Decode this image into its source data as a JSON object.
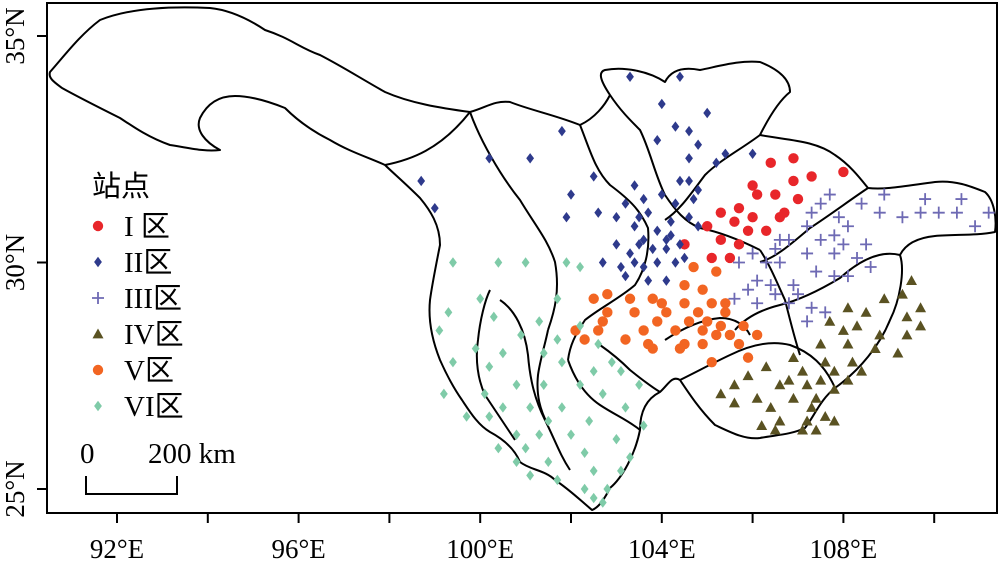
{
  "axes": {
    "x_ticks": [
      "92°E",
      "96°E",
      "100°E",
      "104°E",
      "108°E"
    ],
    "y_ticks": [
      "35°N",
      "30°N",
      "25°N"
    ]
  },
  "legend": {
    "title": "站点",
    "entries": [
      {
        "label": "I 区",
        "color": "#e8262a",
        "shape": "circle"
      },
      {
        "label": "II区",
        "color": "#2e3a8c",
        "shape": "diamond"
      },
      {
        "label": "III区",
        "color": "#6e6ab4",
        "shape": "plus"
      },
      {
        "label": "IV区",
        "color": "#5a5222",
        "shape": "triangle"
      },
      {
        "label": "V区",
        "color": "#f26522",
        "shape": "circle"
      },
      {
        "label": "VI区",
        "color": "#7fcba8",
        "shape": "diamond"
      }
    ]
  },
  "scalebar": {
    "zero": "0",
    "label": "200 km"
  },
  "chart_data": {
    "type": "scatter",
    "title": "",
    "xlim": [
      90.5,
      112
    ],
    "ylim": [
      24.5,
      36
    ],
    "series": [
      {
        "name": "I 区",
        "color": "#e8262a",
        "shape": "circle",
        "points": [
          [
            106.9,
            32.3
          ],
          [
            106.4,
            32.2
          ],
          [
            108.0,
            32.0
          ],
          [
            107.3,
            31.9
          ],
          [
            106.9,
            31.8
          ],
          [
            106.0,
            31.7
          ],
          [
            106.1,
            31.5
          ],
          [
            106.5,
            31.5
          ],
          [
            107.0,
            31.4
          ],
          [
            105.7,
            31.2
          ],
          [
            105.3,
            31.1
          ],
          [
            106.0,
            31.0
          ],
          [
            106.7,
            31.1
          ],
          [
            106.6,
            31.0
          ],
          [
            105.6,
            30.9
          ],
          [
            105.0,
            30.8
          ],
          [
            105.9,
            30.7
          ],
          [
            106.3,
            30.7
          ],
          [
            105.3,
            30.5
          ],
          [
            105.7,
            30.4
          ],
          [
            104.5,
            30.4
          ],
          [
            105.1,
            30.1
          ],
          [
            105.5,
            30.1
          ]
        ]
      },
      {
        "name": "II区",
        "color": "#2e3a8c",
        "shape": "diamond",
        "points": [
          [
            103.3,
            34.1
          ],
          [
            104.4,
            34.1
          ],
          [
            104.0,
            33.5
          ],
          [
            105.0,
            33.3
          ],
          [
            104.3,
            33.0
          ],
          [
            104.6,
            32.9
          ],
          [
            103.9,
            32.7
          ],
          [
            104.8,
            32.6
          ],
          [
            101.8,
            32.9
          ],
          [
            105.4,
            32.4
          ],
          [
            106.0,
            32.4
          ],
          [
            100.2,
            32.3
          ],
          [
            101.1,
            32.3
          ],
          [
            104.6,
            32.3
          ],
          [
            105.2,
            32.2
          ],
          [
            98.7,
            31.8
          ],
          [
            102.5,
            31.9
          ],
          [
            104.4,
            31.8
          ],
          [
            104.6,
            31.8
          ],
          [
            103.4,
            31.7
          ],
          [
            104.8,
            31.6
          ],
          [
            104.0,
            31.5
          ],
          [
            102.0,
            31.5
          ],
          [
            103.6,
            31.4
          ],
          [
            104.7,
            31.4
          ],
          [
            103.2,
            31.3
          ],
          [
            104.3,
            31.3
          ],
          [
            99.0,
            31.2
          ],
          [
            102.6,
            31.1
          ],
          [
            103.7,
            31.1
          ],
          [
            104.6,
            31.0
          ],
          [
            101.9,
            31.0
          ],
          [
            103.0,
            31.0
          ],
          [
            103.5,
            31.0
          ],
          [
            104.2,
            30.9
          ],
          [
            104.8,
            30.8
          ],
          [
            103.4,
            30.8
          ],
          [
            103.9,
            30.7
          ],
          [
            104.2,
            30.6
          ],
          [
            103.6,
            30.5
          ],
          [
            104.1,
            30.5
          ],
          [
            104.4,
            30.4
          ],
          [
            103.0,
            30.4
          ],
          [
            103.5,
            30.4
          ],
          [
            103.8,
            30.3
          ],
          [
            104.1,
            30.3
          ],
          [
            103.3,
            30.2
          ],
          [
            104.5,
            30.1
          ],
          [
            102.7,
            30.0
          ],
          [
            103.4,
            30.0
          ],
          [
            103.9,
            30.0
          ],
          [
            104.3,
            30.0
          ],
          [
            103.1,
            29.9
          ],
          [
            103.6,
            29.9
          ],
          [
            103.2,
            29.7
          ],
          [
            103.7,
            29.6
          ],
          [
            104.1,
            29.6
          ]
        ]
      },
      {
        "name": "III区",
        "color": "#6e6ab4",
        "shape": "plus",
        "points": [
          [
            107.7,
            31.5
          ],
          [
            108.9,
            31.5
          ],
          [
            109.8,
            31.4
          ],
          [
            110.6,
            31.4
          ],
          [
            107.5,
            31.3
          ],
          [
            108.4,
            31.3
          ],
          [
            107.3,
            31.1
          ],
          [
            108.8,
            31.1
          ],
          [
            109.7,
            31.1
          ],
          [
            110.1,
            31.1
          ],
          [
            110.5,
            31.1
          ],
          [
            111.2,
            31.1
          ],
          [
            107.9,
            31.0
          ],
          [
            109.3,
            31.0
          ],
          [
            107.2,
            30.8
          ],
          [
            108.1,
            30.8
          ],
          [
            110.9,
            30.8
          ],
          [
            111.7,
            30.8
          ],
          [
            107.8,
            30.6
          ],
          [
            106.6,
            30.5
          ],
          [
            106.8,
            30.5
          ],
          [
            107.5,
            30.5
          ],
          [
            108.0,
            30.4
          ],
          [
            108.5,
            30.4
          ],
          [
            106.5,
            30.3
          ],
          [
            106.0,
            30.2
          ],
          [
            107.2,
            30.2
          ],
          [
            107.8,
            30.2
          ],
          [
            108.3,
            30.1
          ],
          [
            105.7,
            30.0
          ],
          [
            106.3,
            30.0
          ],
          [
            106.6,
            30.0
          ],
          [
            108.6,
            29.9
          ],
          [
            107.4,
            29.8
          ],
          [
            107.8,
            29.7
          ],
          [
            108.1,
            29.7
          ],
          [
            106.1,
            29.6
          ],
          [
            106.4,
            29.5
          ],
          [
            106.9,
            29.5
          ],
          [
            105.9,
            29.4
          ],
          [
            106.5,
            29.3
          ],
          [
            107.0,
            29.3
          ],
          [
            105.6,
            29.2
          ],
          [
            106.1,
            29.1
          ],
          [
            106.8,
            29.1
          ],
          [
            107.3,
            29.0
          ],
          [
            107.6,
            28.9
          ],
          [
            107.2,
            28.7
          ]
        ]
      },
      {
        "name": "IV区",
        "color": "#5a5222",
        "shape": "triangle",
        "points": [
          [
            109.5,
            29.6
          ],
          [
            109.3,
            29.3
          ],
          [
            108.9,
            29.2
          ],
          [
            108.1,
            29.0
          ],
          [
            109.7,
            29.0
          ],
          [
            108.5,
            28.9
          ],
          [
            109.4,
            28.8
          ],
          [
            107.7,
            28.7
          ],
          [
            108.3,
            28.6
          ],
          [
            109.7,
            28.6
          ],
          [
            108.0,
            28.5
          ],
          [
            108.8,
            28.4
          ],
          [
            109.4,
            28.4
          ],
          [
            107.5,
            28.2
          ],
          [
            108.1,
            28.2
          ],
          [
            108.7,
            28.1
          ],
          [
            109.2,
            28.0
          ],
          [
            106.9,
            27.9
          ],
          [
            107.6,
            27.8
          ],
          [
            108.2,
            27.8
          ],
          [
            106.3,
            27.7
          ],
          [
            107.1,
            27.6
          ],
          [
            107.8,
            27.6
          ],
          [
            108.4,
            27.6
          ],
          [
            105.9,
            27.5
          ],
          [
            106.8,
            27.4
          ],
          [
            107.5,
            27.4
          ],
          [
            108.1,
            27.4
          ],
          [
            105.6,
            27.3
          ],
          [
            106.6,
            27.3
          ],
          [
            107.2,
            27.3
          ],
          [
            107.8,
            27.2
          ],
          [
            105.3,
            27.1
          ],
          [
            106.1,
            27.0
          ],
          [
            106.9,
            27.0
          ],
          [
            107.4,
            27.0
          ],
          [
            105.6,
            26.9
          ],
          [
            106.4,
            26.8
          ],
          [
            107.3,
            26.8
          ],
          [
            107.6,
            26.6
          ],
          [
            106.6,
            26.5
          ],
          [
            107.2,
            26.5
          ],
          [
            107.8,
            26.5
          ],
          [
            106.2,
            26.4
          ],
          [
            106.5,
            26.3
          ],
          [
            107.1,
            26.3
          ],
          [
            107.4,
            26.3
          ]
        ]
      },
      {
        "name": "V区",
        "color": "#f26522",
        "shape": "circle",
        "points": [
          [
            104.7,
            29.9
          ],
          [
            105.2,
            29.8
          ],
          [
            104.5,
            29.5
          ],
          [
            104.9,
            29.4
          ],
          [
            102.8,
            29.3
          ],
          [
            102.5,
            29.2
          ],
          [
            103.3,
            29.2
          ],
          [
            103.8,
            29.2
          ],
          [
            104.0,
            29.1
          ],
          [
            104.5,
            29.1
          ],
          [
            105.1,
            29.1
          ],
          [
            105.4,
            29.1
          ],
          [
            102.8,
            28.9
          ],
          [
            103.4,
            28.9
          ],
          [
            104.1,
            28.9
          ],
          [
            104.8,
            28.9
          ],
          [
            105.4,
            28.9
          ],
          [
            102.7,
            28.7
          ],
          [
            103.9,
            28.7
          ],
          [
            104.6,
            28.7
          ],
          [
            105.0,
            28.7
          ],
          [
            105.3,
            28.6
          ],
          [
            105.8,
            28.6
          ],
          [
            102.1,
            28.5
          ],
          [
            102.6,
            28.5
          ],
          [
            103.6,
            28.5
          ],
          [
            104.3,
            28.5
          ],
          [
            104.9,
            28.5
          ],
          [
            105.2,
            28.4
          ],
          [
            105.5,
            28.4
          ],
          [
            106.1,
            28.4
          ],
          [
            102.3,
            28.3
          ],
          [
            103.2,
            28.3
          ],
          [
            103.7,
            28.2
          ],
          [
            104.5,
            28.2
          ],
          [
            104.9,
            28.2
          ],
          [
            105.7,
            28.2
          ],
          [
            103.8,
            28.1
          ],
          [
            104.4,
            28.1
          ],
          [
            105.9,
            27.9
          ],
          [
            105.1,
            27.8
          ]
        ]
      },
      {
        "name": "VI区",
        "color": "#7fcba8",
        "shape": "diamond",
        "points": [
          [
            99.4,
            30.0
          ],
          [
            100.4,
            30.0
          ],
          [
            101.0,
            30.0
          ],
          [
            101.9,
            30.0
          ],
          [
            102.2,
            29.9
          ],
          [
            100.0,
            29.2
          ],
          [
            101.7,
            29.2
          ],
          [
            99.3,
            28.9
          ],
          [
            100.3,
            28.8
          ],
          [
            101.3,
            28.7
          ],
          [
            102.2,
            28.6
          ],
          [
            99.1,
            28.5
          ],
          [
            100.9,
            28.4
          ],
          [
            101.7,
            28.3
          ],
          [
            102.6,
            28.2
          ],
          [
            99.9,
            28.1
          ],
          [
            100.5,
            28.0
          ],
          [
            101.4,
            28.0
          ],
          [
            102.9,
            27.8
          ],
          [
            101.8,
            27.8
          ],
          [
            99.4,
            27.8
          ],
          [
            100.2,
            27.7
          ],
          [
            102.5,
            27.6
          ],
          [
            103.1,
            27.6
          ],
          [
            100.8,
            27.3
          ],
          [
            101.4,
            27.3
          ],
          [
            102.2,
            27.3
          ],
          [
            103.5,
            27.3
          ],
          [
            99.2,
            27.1
          ],
          [
            100.1,
            27.1
          ],
          [
            102.7,
            27.1
          ],
          [
            101.1,
            26.8
          ],
          [
            100.5,
            26.8
          ],
          [
            101.8,
            26.8
          ],
          [
            103.2,
            26.8
          ],
          [
            99.7,
            26.6
          ],
          [
            100.2,
            26.6
          ],
          [
            101.5,
            26.5
          ],
          [
            102.4,
            26.5
          ],
          [
            103.6,
            26.4
          ],
          [
            100.8,
            26.2
          ],
          [
            101.3,
            26.2
          ],
          [
            102.0,
            26.2
          ],
          [
            103.0,
            26.1
          ],
          [
            100.4,
            25.9
          ],
          [
            101.0,
            25.9
          ],
          [
            102.3,
            25.8
          ],
          [
            103.3,
            25.7
          ],
          [
            100.8,
            25.6
          ],
          [
            101.5,
            25.6
          ],
          [
            102.5,
            25.4
          ],
          [
            103.1,
            25.4
          ],
          [
            101.1,
            25.3
          ],
          [
            101.7,
            25.2
          ],
          [
            102.3,
            25.0
          ],
          [
            102.8,
            25.0
          ],
          [
            102.5,
            24.8
          ],
          [
            102.7,
            24.7
          ]
        ]
      }
    ]
  }
}
